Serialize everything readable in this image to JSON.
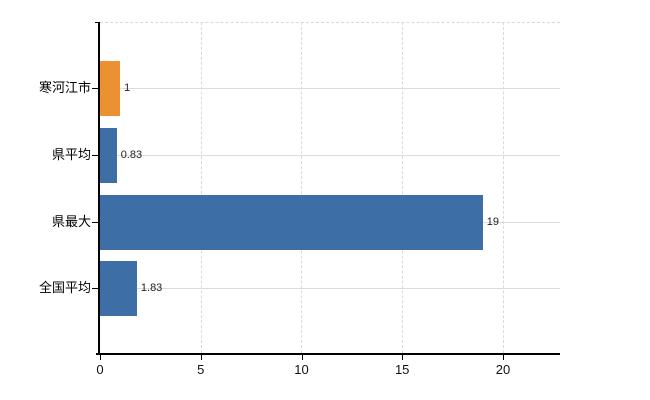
{
  "chart_data": {
    "type": "bar",
    "orientation": "horizontal",
    "title": "",
    "xlabel": "",
    "ylabel": "",
    "categories": [
      "寒河江市",
      "県平均",
      "県最大",
      "全国平均"
    ],
    "values": [
      1,
      0.83,
      19,
      1.83
    ],
    "value_labels": [
      "1",
      "0.83",
      "19",
      "1.83"
    ],
    "bar_colors": [
      "#eb9132",
      "#3d6fa6",
      "#3d6fa6",
      "#3d6fa6"
    ],
    "highlight_color": "#eb9132",
    "default_color": "#3d6fa6",
    "x_ticks": [
      0,
      5,
      10,
      15,
      20
    ],
    "x_tick_labels": [
      "0",
      "5",
      "10",
      "15",
      "20"
    ],
    "xlim": [
      0,
      22.83
    ],
    "grid": true,
    "legend": false,
    "background_color": "#ffffff"
  }
}
